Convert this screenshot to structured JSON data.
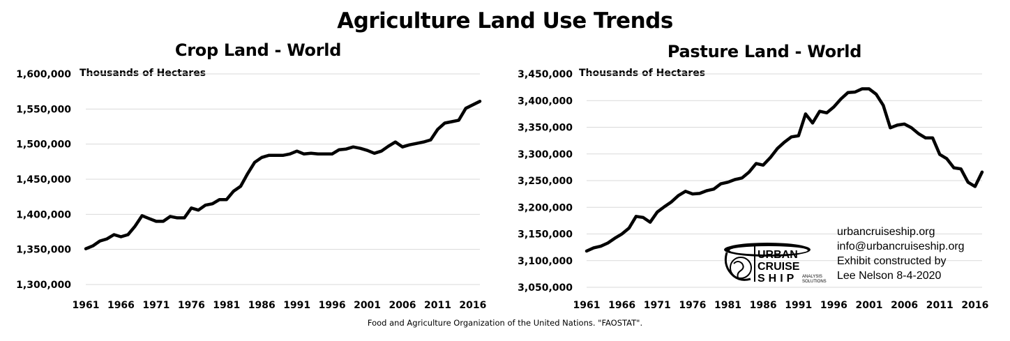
{
  "title": "Agriculture Land Use Trends",
  "source": "Food and Agriculture Organization of the United Nations. \"FAOSTAT\".",
  "credit": {
    "lines": [
      "urbancruiseship.org",
      "info@urbancruiseship.org",
      "Exhibit constructed by",
      "Lee Nelson 8-4-2020"
    ]
  },
  "logo": {
    "line1": "URBAN",
    "line2": "CRUISE",
    "line3": "SHIP",
    "tagline1": "ANALYSIS",
    "tagline2": "SOLUTIONS"
  },
  "chart_data": [
    {
      "type": "line",
      "title": "Crop Land - World",
      "unit_label": "Thousands of Hectares",
      "xlabel": "",
      "ylabel": "",
      "ylim": [
        1300000,
        1600000
      ],
      "yticks": [
        1300000,
        1350000,
        1400000,
        1450000,
        1500000,
        1550000,
        1600000
      ],
      "ytick_labels": [
        "1,300,000",
        "1,350,000",
        "1,400,000",
        "1,450,000",
        "1,500,000",
        "1,550,000",
        "1,600,000"
      ],
      "xticks": [
        1961,
        1966,
        1971,
        1976,
        1981,
        1986,
        1991,
        1996,
        2001,
        2006,
        2011,
        2016
      ],
      "xlim": [
        1961,
        2017
      ],
      "grid": "horizontal",
      "line_color": "#000000",
      "series": [
        {
          "x": [
            1961,
            1962,
            1963,
            1964,
            1965,
            1966,
            1967,
            1968,
            1969,
            1970,
            1971,
            1972,
            1973,
            1974,
            1975,
            1976,
            1977,
            1978,
            1979,
            1980,
            1981,
            1982,
            1983,
            1984,
            1985,
            1986,
            1987,
            1988,
            1989,
            1990,
            1991,
            1992,
            1993,
            1994,
            1995,
            1996,
            1997,
            1998,
            1999,
            2000,
            2001,
            2002,
            2003,
            2004,
            2005,
            2006,
            2007,
            2008,
            2009,
            2010,
            2011,
            2012,
            2013,
            2014,
            2015,
            2016,
            2017
          ],
          "values": [
            1351000,
            1355000,
            1362000,
            1365000,
            1371000,
            1368000,
            1371000,
            1383000,
            1398000,
            1394000,
            1390000,
            1390000,
            1397000,
            1395000,
            1395000,
            1409000,
            1406000,
            1413000,
            1415000,
            1421000,
            1421000,
            1433000,
            1440000,
            1458000,
            1474000,
            1481000,
            1484000,
            1484000,
            1484000,
            1486000,
            1490000,
            1486000,
            1487000,
            1486000,
            1486000,
            1486000,
            1492000,
            1493000,
            1496000,
            1494000,
            1491000,
            1487000,
            1490000,
            1497000,
            1503000,
            1496000,
            1499000,
            1501000,
            1503000,
            1506000,
            1521000,
            1530000,
            1532000,
            1534000,
            1551000,
            1556000,
            1561000
          ]
        }
      ]
    },
    {
      "type": "line",
      "title": "Pasture Land - World",
      "unit_label": "Thousands of Hectares",
      "xlabel": "",
      "ylabel": "",
      "ylim": [
        3050000,
        3450000
      ],
      "yticks": [
        3050000,
        3100000,
        3150000,
        3200000,
        3250000,
        3300000,
        3350000,
        3400000,
        3450000
      ],
      "ytick_labels": [
        "3,050,000",
        "3,100,000",
        "3,150,000",
        "3,200,000",
        "3,250,000",
        "3,300,000",
        "3,350,000",
        "3,400,000",
        "3,450,000"
      ],
      "xticks": [
        1961,
        1966,
        1971,
        1976,
        1981,
        1986,
        1991,
        1996,
        2001,
        2006,
        2011,
        2016
      ],
      "xlim": [
        1961,
        2017
      ],
      "grid": "horizontal",
      "line_color": "#000000",
      "series": [
        {
          "x": [
            1961,
            1962,
            1963,
            1964,
            1965,
            1966,
            1967,
            1968,
            1969,
            1970,
            1971,
            1972,
            1973,
            1974,
            1975,
            1976,
            1977,
            1978,
            1979,
            1980,
            1981,
            1982,
            1983,
            1984,
            1985,
            1986,
            1987,
            1988,
            1989,
            1990,
            1991,
            1992,
            1993,
            1994,
            1995,
            1996,
            1997,
            1998,
            1999,
            2000,
            2001,
            2002,
            2003,
            2004,
            2005,
            2006,
            2007,
            2008,
            2009,
            2010,
            2011,
            2012,
            2013,
            2014,
            2015,
            2016,
            2017
          ],
          "values": [
            3118000,
            3124000,
            3127000,
            3133000,
            3142000,
            3150000,
            3161000,
            3183000,
            3181000,
            3172000,
            3191000,
            3201000,
            3210000,
            3222000,
            3230000,
            3225000,
            3226000,
            3231000,
            3234000,
            3244000,
            3247000,
            3252000,
            3255000,
            3266000,
            3282000,
            3279000,
            3293000,
            3310000,
            3322000,
            3332000,
            3334000,
            3375000,
            3358000,
            3380000,
            3377000,
            3388000,
            3403000,
            3415000,
            3416000,
            3422000,
            3422000,
            3412000,
            3391000,
            3349000,
            3354000,
            3356000,
            3349000,
            3338000,
            3330000,
            3330000,
            3299000,
            3291000,
            3274000,
            3272000,
            3247000,
            3239000,
            3266000
          ]
        }
      ]
    }
  ]
}
